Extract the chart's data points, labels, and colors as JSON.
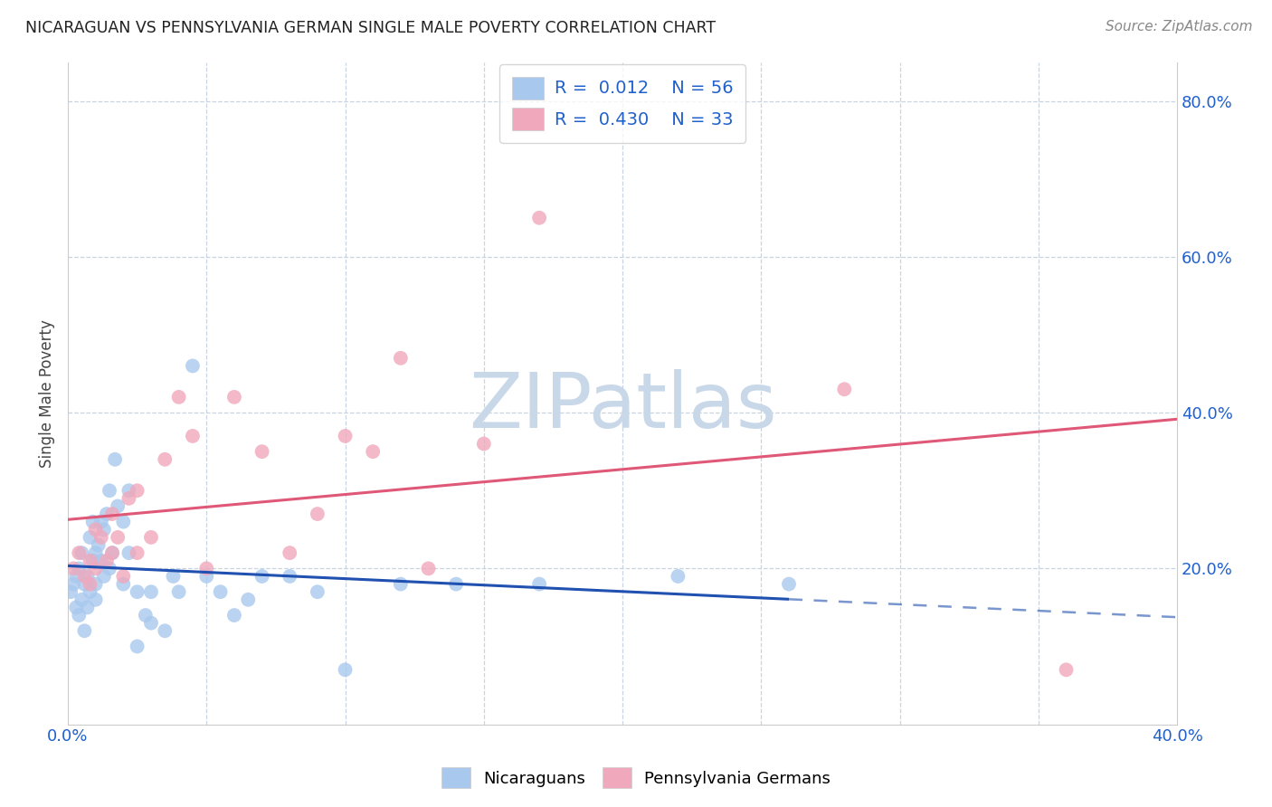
{
  "title": "NICARAGUAN VS PENNSYLVANIA GERMAN SINGLE MALE POVERTY CORRELATION CHART",
  "source": "Source: ZipAtlas.com",
  "ylabel_label": "Single Male Poverty",
  "xlim": [
    0.0,
    40.0
  ],
  "ylim": [
    0.0,
    85.0
  ],
  "xtick_positions": [
    0.0,
    5.0,
    10.0,
    15.0,
    20.0,
    25.0,
    30.0,
    35.0,
    40.0
  ],
  "xtick_labels": [
    "0.0%",
    "",
    "",
    "",
    "",
    "",
    "",
    "",
    "40.0%"
  ],
  "right_ytick_positions": [
    20.0,
    40.0,
    60.0,
    80.0
  ],
  "right_ytick_labels": [
    "20.0%",
    "40.0%",
    "60.0%",
    "80.0%"
  ],
  "blue_R": "0.012",
  "blue_N": "56",
  "pink_R": "0.430",
  "pink_N": "33",
  "blue_color": "#a8c8ee",
  "pink_color": "#f0a8bc",
  "blue_line_color": "#2050b0",
  "pink_line_color": "#e05878",
  "grid_color": "#c8d4e0",
  "background_color": "#ffffff",
  "watermark_text": "ZIPatlas",
  "watermark_color": "#c8d8e8",
  "legend_text_color": "#2060cc",
  "blue_solid_line_end_x": 26.0,
  "blue_scatter_x": [
    0.1,
    0.2,
    0.3,
    0.3,
    0.4,
    0.4,
    0.5,
    0.5,
    0.6,
    0.6,
    0.7,
    0.7,
    0.8,
    0.8,
    0.9,
    0.9,
    1.0,
    1.0,
    1.0,
    1.1,
    1.2,
    1.2,
    1.3,
    1.3,
    1.4,
    1.5,
    1.5,
    1.6,
    1.7,
    1.8,
    2.0,
    2.0,
    2.2,
    2.2,
    2.5,
    2.5,
    2.8,
    3.0,
    3.0,
    3.5,
    3.8,
    4.0,
    4.5,
    5.0,
    5.5,
    6.0,
    6.5,
    7.0,
    8.0,
    9.0,
    10.0,
    12.0,
    14.0,
    17.0,
    22.0,
    26.0
  ],
  "blue_scatter_y": [
    17.0,
    18.0,
    15.0,
    19.0,
    14.0,
    20.0,
    16.0,
    22.0,
    12.0,
    18.0,
    15.0,
    19.0,
    24.0,
    17.0,
    21.0,
    26.0,
    16.0,
    18.0,
    22.0,
    23.0,
    21.0,
    26.0,
    25.0,
    19.0,
    27.0,
    30.0,
    20.0,
    22.0,
    34.0,
    28.0,
    26.0,
    18.0,
    30.0,
    22.0,
    10.0,
    17.0,
    14.0,
    13.0,
    17.0,
    12.0,
    19.0,
    17.0,
    46.0,
    19.0,
    17.0,
    14.0,
    16.0,
    19.0,
    19.0,
    17.0,
    7.0,
    18.0,
    18.0,
    18.0,
    19.0,
    18.0
  ],
  "pink_scatter_x": [
    0.2,
    0.4,
    0.6,
    0.8,
    0.8,
    1.0,
    1.0,
    1.2,
    1.4,
    1.6,
    1.6,
    1.8,
    2.0,
    2.2,
    2.5,
    2.5,
    3.0,
    3.5,
    4.0,
    4.5,
    5.0,
    6.0,
    7.0,
    8.0,
    9.0,
    10.0,
    11.0,
    12.0,
    13.0,
    15.0,
    17.0,
    28.0,
    36.0
  ],
  "pink_scatter_y": [
    20.0,
    22.0,
    19.0,
    18.0,
    21.0,
    25.0,
    20.0,
    24.0,
    21.0,
    27.0,
    22.0,
    24.0,
    19.0,
    29.0,
    30.0,
    22.0,
    24.0,
    34.0,
    42.0,
    37.0,
    20.0,
    42.0,
    35.0,
    22.0,
    27.0,
    37.0,
    35.0,
    47.0,
    20.0,
    36.0,
    65.0,
    43.0,
    7.0
  ]
}
